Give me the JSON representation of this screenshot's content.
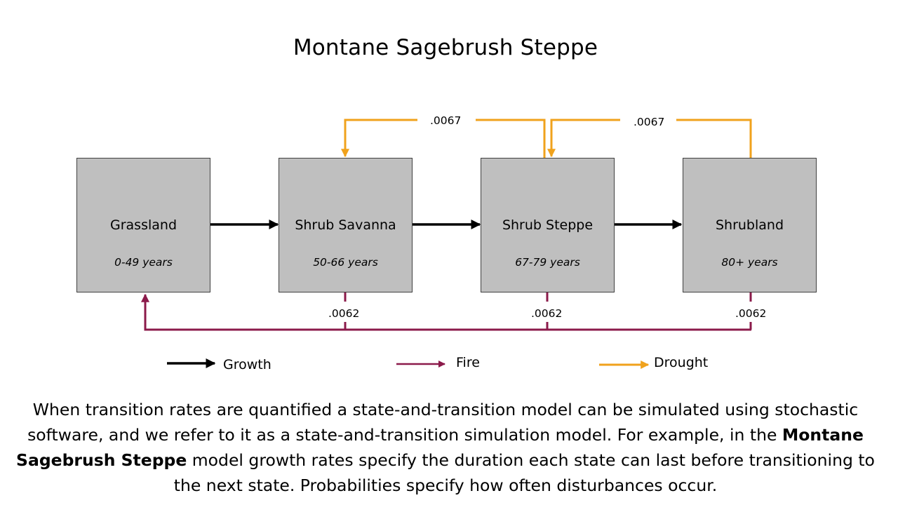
{
  "title": "Montane Sagebrush Steppe",
  "states": [
    {
      "name": "Grassland",
      "age": "0-49 years"
    },
    {
      "name": "Shrub Savanna",
      "age": "50-66 years"
    },
    {
      "name": "Shrub Steppe",
      "age": "67-79 years"
    },
    {
      "name": "Shrubland",
      "age": "80+ years"
    }
  ],
  "drought_rates": [
    ".0067",
    ".0067"
  ],
  "fire_rates": [
    ".0062",
    ".0062",
    ".0062"
  ],
  "legend": {
    "growth": "Growth",
    "fire": "Fire",
    "drought": "Drought"
  },
  "colors": {
    "box_fill": "#bfbfbf",
    "growth": "#000000",
    "fire": "#8b1a4a",
    "drought": "#f0a21c"
  },
  "caption": {
    "part1": "When transition rates are quantified a state-and-transition model can be simulated using stochastic software, and we refer to it as a state-and-transition simulation model. For example, in the ",
    "bold": "Montane Sagebrush Steppe",
    "part2": " model growth rates specify the duration each state can last before transitioning to the next state. Probabilities specify how often disturbances occur."
  }
}
